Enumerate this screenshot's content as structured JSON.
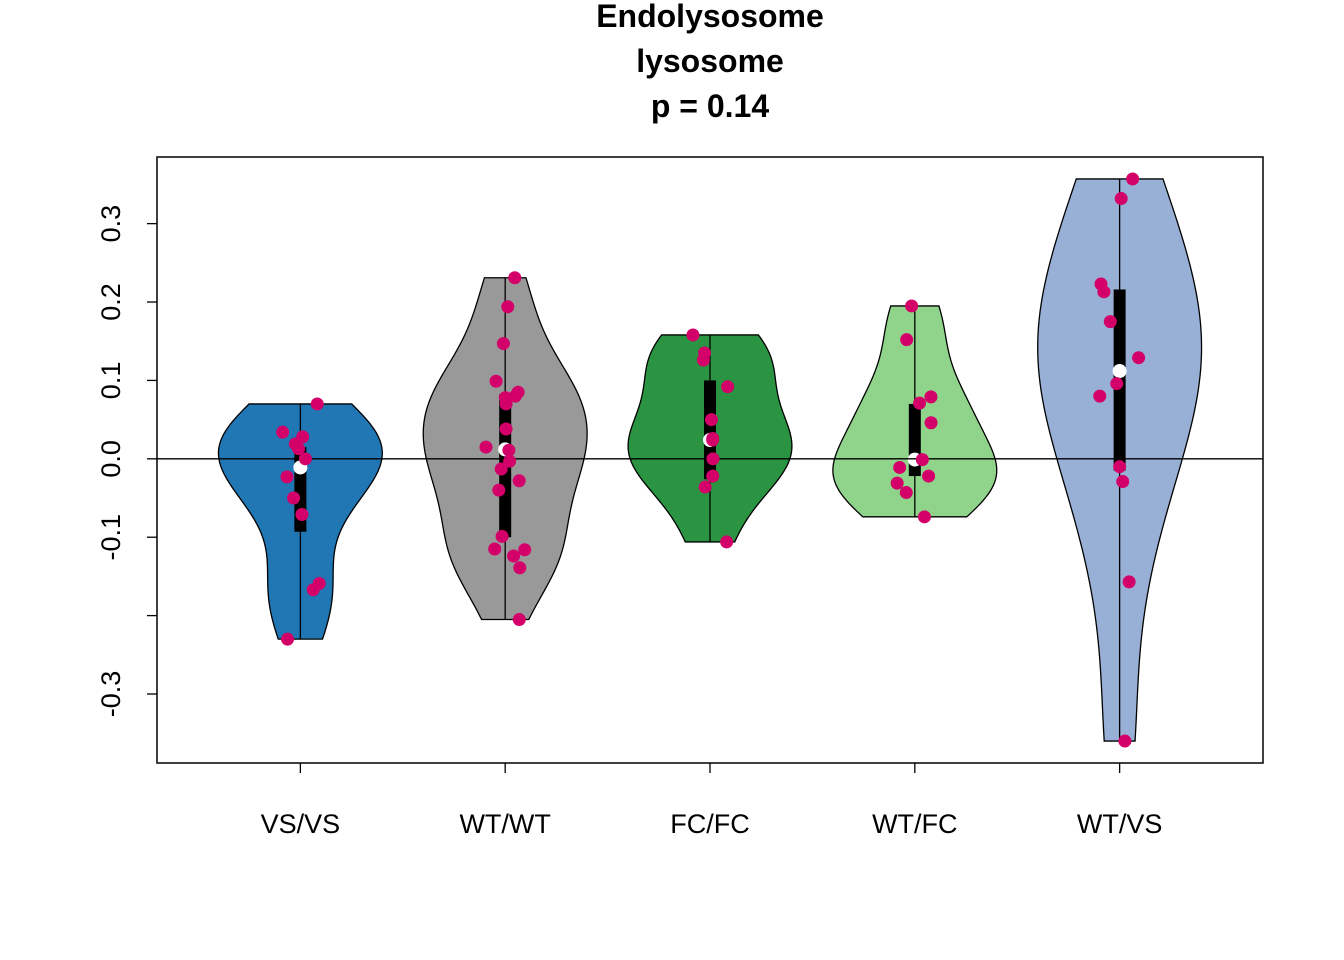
{
  "chart_data": {
    "type": "violin",
    "title": [
      "Endolysosome",
      "lysosome",
      "p = 0.14"
    ],
    "categories": [
      "VS/VS",
      "WT/WT",
      "FC/FC",
      "WT/FC",
      "WT/VS"
    ],
    "ylim": [
      -0.388,
      0.385
    ],
    "yticks": [
      {
        "value": -0.3,
        "label": "-0.3"
      },
      {
        "value": -0.2,
        "label": null
      },
      {
        "value": -0.1,
        "label": "-0.1"
      },
      {
        "value": 0,
        "label": "0.0"
      },
      {
        "value": 0.1,
        "label": "0.1"
      },
      {
        "value": 0.2,
        "label": "0.2"
      },
      {
        "value": 0.3,
        "label": "0.3"
      }
    ],
    "hline": 0,
    "point_color": "#d4006a",
    "median_color": "#ffffff",
    "groups": [
      {
        "name": "VS/VS",
        "color": "#2077b4",
        "values": [
          0.07,
          0.034,
          0.028,
          0.019,
          0.013,
          0.0,
          -0.023,
          -0.05,
          -0.071,
          -0.159,
          -0.167,
          -0.23
        ],
        "median": -0.011,
        "q1": -0.093,
        "q3": 0.015,
        "min": -0.23,
        "max": 0.07
      },
      {
        "name": "WT/WT",
        "color": "#999999",
        "values": [
          0.231,
          0.194,
          0.147,
          0.099,
          0.085,
          0.08,
          0.078,
          0.07,
          0.038,
          0.015,
          0.011,
          -0.003,
          -0.013,
          -0.028,
          -0.04,
          -0.099,
          -0.115,
          -0.116,
          -0.124,
          -0.139,
          -0.205
        ],
        "median": 0.012,
        "q1": -0.1,
        "q3": 0.082,
        "min": -0.205,
        "max": 0.231
      },
      {
        "name": "FC/FC",
        "color": "#2b9442",
        "values": [
          0.158,
          0.135,
          0.126,
          0.092,
          0.05,
          0.026,
          0.024,
          0.0,
          -0.022,
          -0.036,
          -0.106
        ],
        "median": 0.024,
        "q1": -0.026,
        "q3": 0.1,
        "min": -0.106,
        "max": 0.158
      },
      {
        "name": "WT/FC",
        "color": "#90d38a",
        "values": [
          0.195,
          0.152,
          0.079,
          0.071,
          0.046,
          -0.001,
          -0.011,
          -0.022,
          -0.031,
          -0.043,
          -0.074
        ],
        "median": -0.001,
        "q1": -0.022,
        "q3": 0.07,
        "min": -0.074,
        "max": 0.195
      },
      {
        "name": "WT/VS",
        "color": "#98afd6",
        "values": [
          0.357,
          0.332,
          0.223,
          0.213,
          0.175,
          0.129,
          0.096,
          0.08,
          -0.01,
          -0.029,
          -0.157,
          -0.36
        ],
        "median": 0.112,
        "q1": -0.015,
        "q3": 0.216,
        "min": -0.36,
        "max": 0.357
      }
    ]
  }
}
